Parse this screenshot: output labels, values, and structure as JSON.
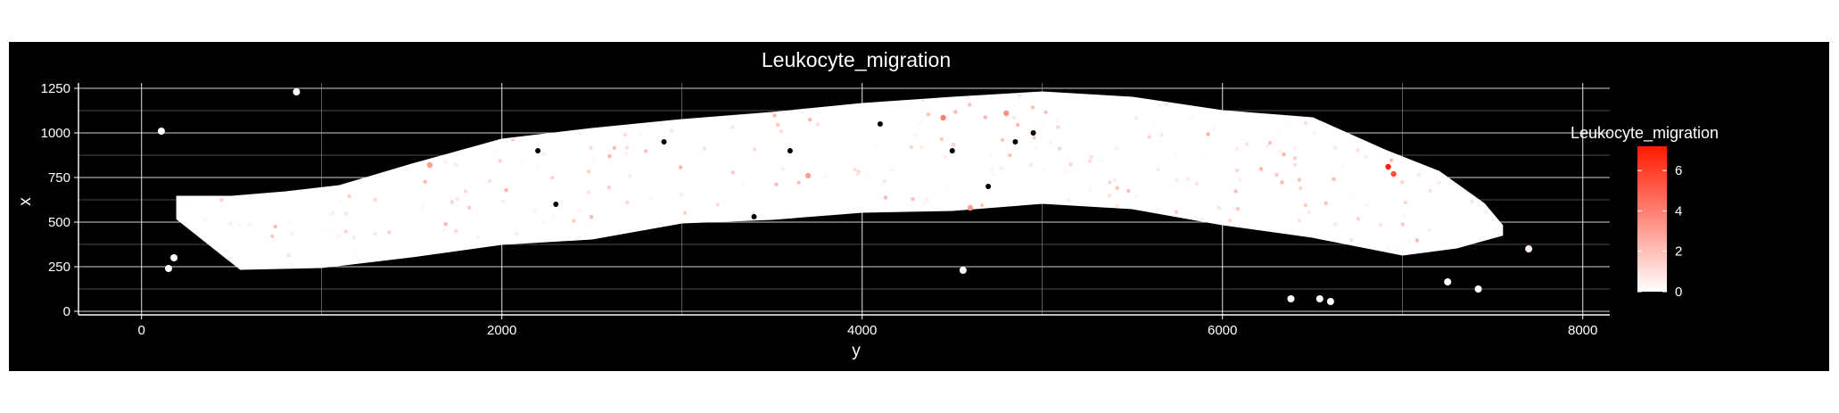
{
  "chart_data": {
    "type": "scatter",
    "title": "Leukocyte_migration",
    "xlabel": "y",
    "ylabel": "x",
    "xlim": [
      -350,
      8150
    ],
    "ylim": [
      -20,
      1280
    ],
    "x_ticks": [
      0,
      2000,
      4000,
      6000,
      8000
    ],
    "y_ticks": [
      0,
      250,
      500,
      750,
      1000,
      1250
    ],
    "grid": true,
    "background": "#000000",
    "legend": {
      "title": "Leukocyte_migration",
      "position": "right",
      "min": 0,
      "max": 7.2,
      "ticks": [
        0,
        2,
        4,
        6
      ],
      "low_color": "#ffffff",
      "high_color": "#ff1a00"
    },
    "tissue_outline": {
      "upper": [
        [
          200,
          640
        ],
        [
          500,
          640
        ],
        [
          800,
          665
        ],
        [
          1100,
          700
        ],
        [
          1500,
          820
        ],
        [
          2000,
          960
        ],
        [
          2500,
          1020
        ],
        [
          3000,
          1070
        ],
        [
          3500,
          1110
        ],
        [
          4000,
          1160
        ],
        [
          4500,
          1195
        ],
        [
          5000,
          1225
        ],
        [
          5500,
          1195
        ],
        [
          6000,
          1120
        ],
        [
          6500,
          1080
        ],
        [
          6900,
          900
        ],
        [
          7200,
          780
        ],
        [
          7450,
          600
        ],
        [
          7550,
          480
        ]
      ],
      "lower": [
        [
          200,
          520
        ],
        [
          550,
          240
        ],
        [
          1000,
          250
        ],
        [
          1500,
          310
        ],
        [
          2000,
          380
        ],
        [
          2500,
          410
        ],
        [
          3000,
          500
        ],
        [
          3500,
          520
        ],
        [
          4000,
          560
        ],
        [
          4500,
          570
        ],
        [
          5000,
          610
        ],
        [
          5500,
          580
        ],
        [
          6000,
          490
        ],
        [
          6500,
          420
        ],
        [
          7000,
          320
        ],
        [
          7300,
          360
        ],
        [
          7550,
          430
        ]
      ]
    },
    "outlier_points": [
      {
        "x": 860,
        "y": 1230,
        "value": 0
      },
      {
        "x": 110,
        "y": 1010,
        "value": 0
      },
      {
        "x": 150,
        "y": 240,
        "value": 0
      },
      {
        "x": 180,
        "y": 300,
        "value": 0
      },
      {
        "x": 4560,
        "y": 230,
        "value": 0
      },
      {
        "x": 6380,
        "y": 70,
        "value": 0
      },
      {
        "x": 6540,
        "y": 70,
        "value": 0
      },
      {
        "x": 6600,
        "y": 55,
        "value": 0
      },
      {
        "x": 7250,
        "y": 165,
        "value": 0
      },
      {
        "x": 7420,
        "y": 125,
        "value": 0
      },
      {
        "x": 7700,
        "y": 350,
        "value": 0.5
      }
    ],
    "hotspots": [
      {
        "x": 6920,
        "y": 810,
        "value": 7
      },
      {
        "x": 6950,
        "y": 770,
        "value": 5.5
      },
      {
        "x": 4450,
        "y": 1085,
        "value": 4
      },
      {
        "x": 4800,
        "y": 1110,
        "value": 3.5
      },
      {
        "x": 3700,
        "y": 760,
        "value": 3
      },
      {
        "x": 1600,
        "y": 820,
        "value": 3
      },
      {
        "x": 4600,
        "y": 580,
        "value": 3
      }
    ]
  }
}
